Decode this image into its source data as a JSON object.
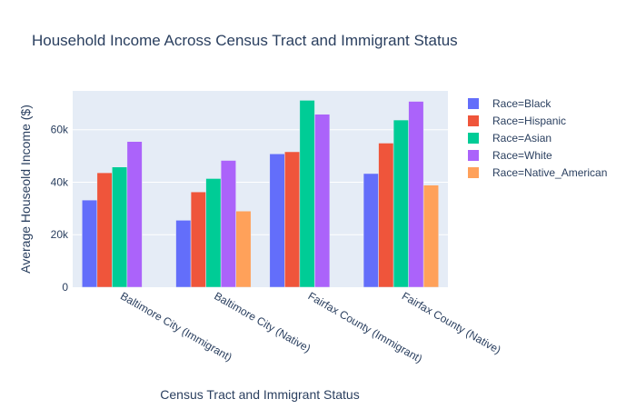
{
  "chart_data": {
    "type": "bar",
    "title": "Household Income Across Census Tract and Immigrant Status",
    "xlabel": "Census Tract and Immigrant Status",
    "ylabel": "Average Houseold Income ($)",
    "categories": [
      "Baltimore City (Immigrant)",
      "Baltimore City (Native)",
      "Fairfax County (Immigrant)",
      "Fairfax County (Native)"
    ],
    "series": [
      {
        "name": "Race=Black",
        "color": "#636efa",
        "values": [
          33200,
          25500,
          50800,
          43300
        ]
      },
      {
        "name": "Race=Hispanic",
        "color": "#ef553b",
        "values": [
          43600,
          36300,
          51600,
          54900
        ]
      },
      {
        "name": "Race=Asian",
        "color": "#00cc96",
        "values": [
          45800,
          41400,
          71200,
          63700
        ]
      },
      {
        "name": "Race=White",
        "color": "#ab63fa",
        "values": [
          55500,
          48300,
          65900,
          70800
        ]
      },
      {
        "name": "Race=Native_American",
        "color": "#ffa15a",
        "values": [
          null,
          29000,
          null,
          38900
        ]
      }
    ],
    "yticks": [
      0,
      20000,
      40000,
      60000
    ],
    "ytick_labels": [
      "0",
      "20k",
      "40k",
      "60k"
    ],
    "ylim": [
      0,
      74800
    ],
    "grid": true,
    "legend_position": "right",
    "plot_background": "#e5ecf6"
  }
}
